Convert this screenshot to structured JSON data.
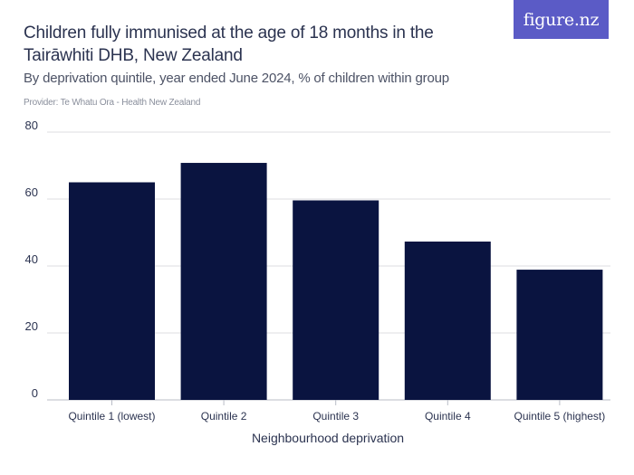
{
  "header": {
    "title": "Children fully immunised at the age of 18 months in the Tairāwhiti DHB, New Zealand",
    "subtitle": "By deprivation quintile, year ended June 2024, % of children within group",
    "provider": "Provider: Te Whatu Ora - Health New Zealand",
    "logo_text": "figure.nz"
  },
  "colors": {
    "bar": "#0a1440",
    "grid": "#dcdde2",
    "logo_bg": "#5b5bc6"
  },
  "chart_data": {
    "type": "bar",
    "categories": [
      "Quintile 1 (lowest)",
      "Quintile 2",
      "Quintile 3",
      "Quintile 4",
      "Quintile 5 (highest)"
    ],
    "values": [
      65,
      70.8,
      59.6,
      47.3,
      38.9
    ],
    "xlabel": "Neighbourhood deprivation",
    "ylabel": "",
    "ylim": [
      0,
      80
    ],
    "yticks": [
      0,
      20,
      40,
      60,
      80
    ],
    "grid": true,
    "legend": "none"
  }
}
